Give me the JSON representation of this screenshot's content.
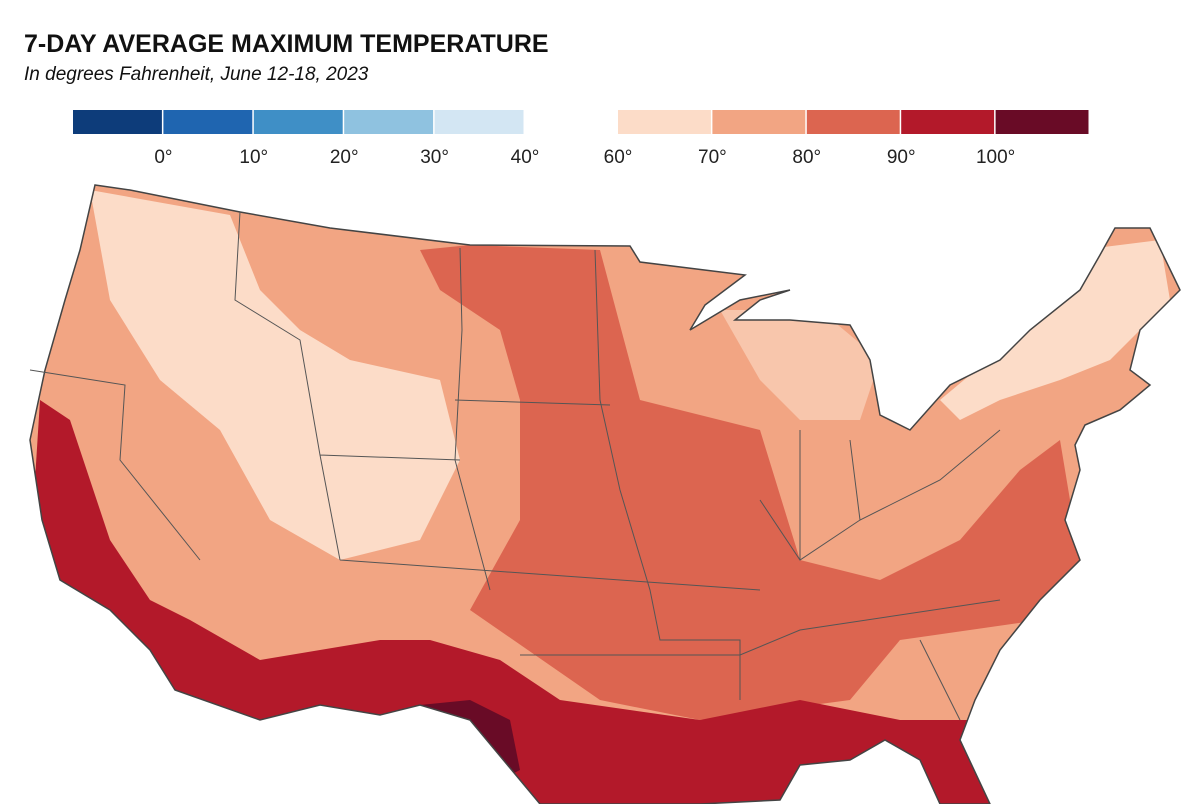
{
  "header": {
    "title": "7-DAY AVERAGE MAXIMUM TEMPERATURE",
    "subtitle": "In degrees Fahrenheit, June 12-18, 2023"
  },
  "legend": {
    "groups": [
      {
        "colors": [
          "#0d3c7a",
          "#1f65b0",
          "#3f8fc6",
          "#8fc2e0",
          "#d3e6f3"
        ],
        "labels": [
          "0°",
          "10°",
          "20°",
          "30°",
          "40°"
        ],
        "label_start": 1
      },
      {
        "colors": [
          "#fcdcc8",
          "#f2a583",
          "#dc6550",
          "#b3192a",
          "#690b26"
        ],
        "labels": [
          "60°",
          "70°",
          "80°",
          "90°",
          "100°"
        ],
        "label_start": 0
      }
    ]
  }
}
